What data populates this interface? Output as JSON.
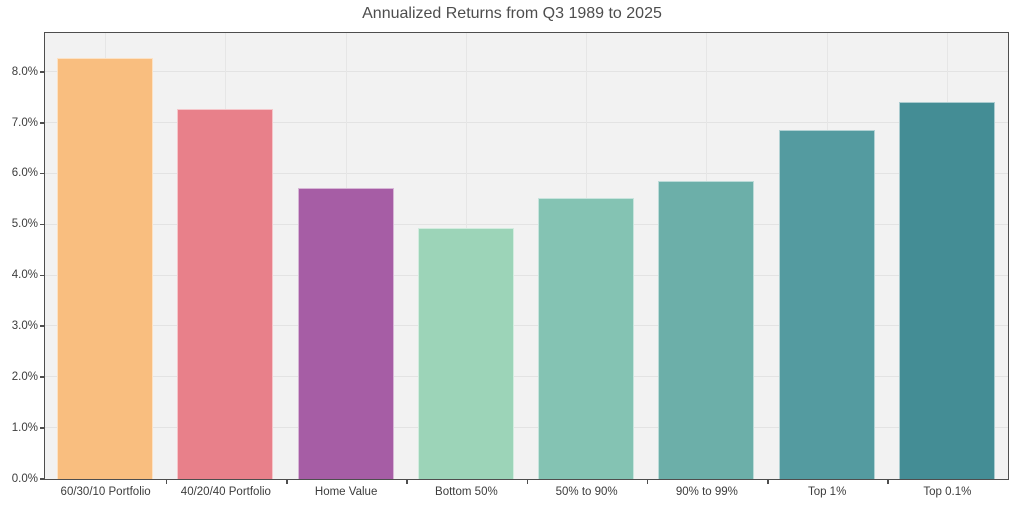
{
  "chart_data": {
    "type": "bar",
    "title": "Annualized Returns from Q3 1989 to 2025",
    "categories": [
      "60/30/10 Portfolio",
      "40/20/40 Portfolio",
      "Home Value",
      "Bottom 50%",
      "50% to 90%",
      "90% to 99%",
      "Top 1%",
      "Top 0.1%"
    ],
    "values": [
      8.27,
      7.27,
      5.72,
      4.93,
      5.52,
      5.86,
      6.87,
      7.41
    ],
    "unit": "%",
    "bar_colors": [
      "#F9BE7F",
      "#E8808A",
      "#A65DA5",
      "#9CD4B8",
      "#84C3B3",
      "#6CAFA9",
      "#549BA0",
      "#448D95"
    ],
    "xlabel": "",
    "ylabel": "",
    "ylim": [
      0,
      8.75
    ],
    "ytick_step": 1.0,
    "ytick_labels": [
      "0.0%",
      "1.0%",
      "2.0%",
      "3.0%",
      "4.0%",
      "5.0%",
      "6.0%",
      "7.0%",
      "8.0%"
    ],
    "grid": true,
    "legend": false,
    "bar_width_fraction": 0.8,
    "plot_bg": "#f2f2f2",
    "grid_color": "#e3e3e3",
    "axis_color": "#4e4e4e",
    "text_color": "#3c3c3c",
    "title_color": "#4d4d4d"
  }
}
